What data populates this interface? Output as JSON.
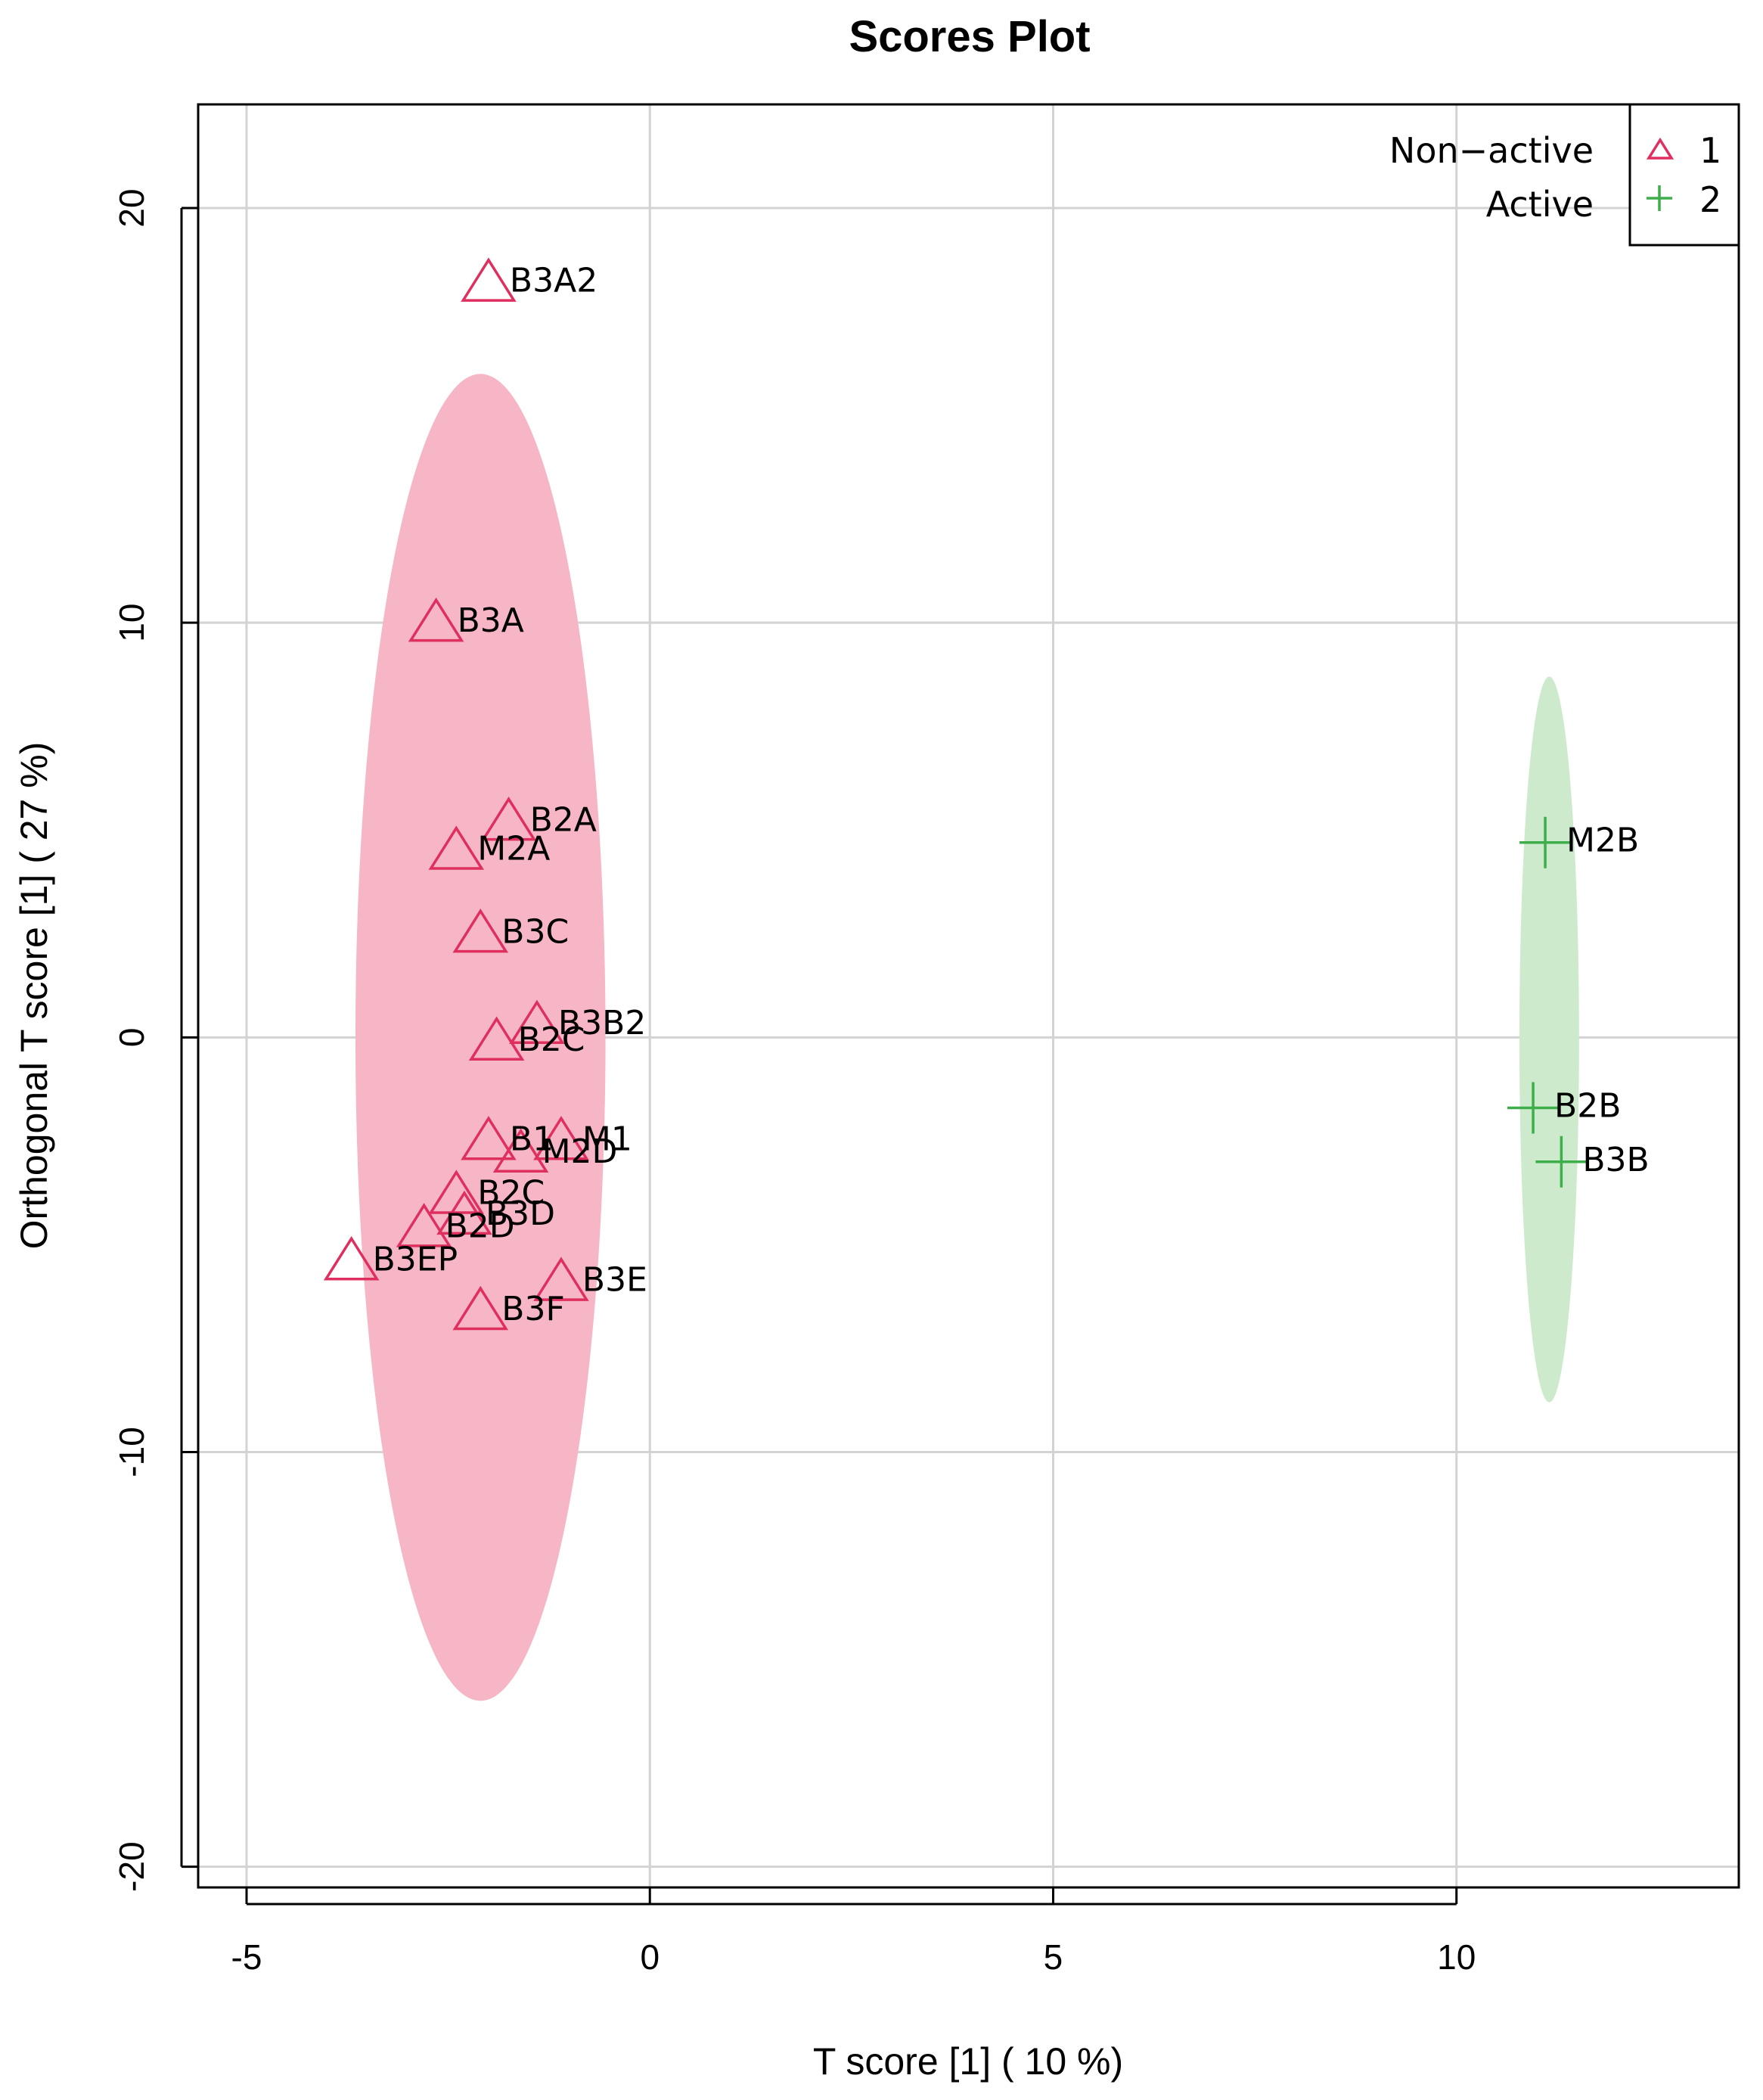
{
  "chart_data": {
    "type": "scatter",
    "title": "Scores Plot",
    "xlabel": "T score [1] ( 10 %)",
    "ylabel": "Orthogonal T score [1] ( 27 %)",
    "xlim": [
      -5.6,
      13.5
    ],
    "ylim": [
      -20.5,
      22.5
    ],
    "xticks": [
      -5,
      0,
      5,
      10
    ],
    "yticks": [
      -20,
      -10,
      0,
      10,
      20
    ],
    "grid": true,
    "legend_position": "top-right",
    "series": [
      {
        "name": "1",
        "legend_label": "Non−active",
        "marker": "triangle",
        "color": "#df2f5e",
        "ellipse": {
          "cx": -2.1,
          "cy": 0,
          "rx": 1.55,
          "ry": 16,
          "fill": "#f7b6c6"
        },
        "points": [
          {
            "label": "B3A2",
            "x": -2.0,
            "y": 18.2
          },
          {
            "label": "B3A",
            "x": -2.65,
            "y": 10.0
          },
          {
            "label": "B2A",
            "x": -1.75,
            "y": 5.2
          },
          {
            "label": "M2A",
            "x": -2.4,
            "y": 4.5
          },
          {
            "label": "B3C",
            "x": -2.1,
            "y": 2.5
          },
          {
            "label": "B3B2",
            "x": -1.4,
            "y": 0.3
          },
          {
            "label": "B2C",
            "x": -1.9,
            "y": -0.1
          },
          {
            "label": "B1",
            "x": -2.0,
            "y": -2.5
          },
          {
            "label": "M1",
            "x": -1.1,
            "y": -2.5
          },
          {
            "label": "M2D",
            "x": -1.6,
            "y": -2.8
          },
          {
            "label": "B2C",
            "x": -2.4,
            "y": -3.8
          },
          {
            "label": "B3D",
            "x": -2.3,
            "y": -4.3
          },
          {
            "label": "B2D",
            "x": -2.8,
            "y": -4.6
          },
          {
            "label": "B3EP",
            "x": -3.7,
            "y": -5.4
          },
          {
            "label": "B3E",
            "x": -1.1,
            "y": -5.9
          },
          {
            "label": "B3F",
            "x": -2.1,
            "y": -6.6
          }
        ]
      },
      {
        "name": "2",
        "legend_label": "Active",
        "marker": "plus",
        "color": "#3dae4a",
        "ellipse": {
          "cx": 11.15,
          "cy": -0.05,
          "rx": 0.37,
          "ry": 8.75,
          "fill": "#cdebcc"
        },
        "points": [
          {
            "label": "M2B",
            "x": 11.1,
            "y": 4.7
          },
          {
            "label": "B2B",
            "x": 10.95,
            "y": -1.7
          },
          {
            "label": "B3B",
            "x": 11.3,
            "y": -3.0
          }
        ]
      }
    ]
  }
}
